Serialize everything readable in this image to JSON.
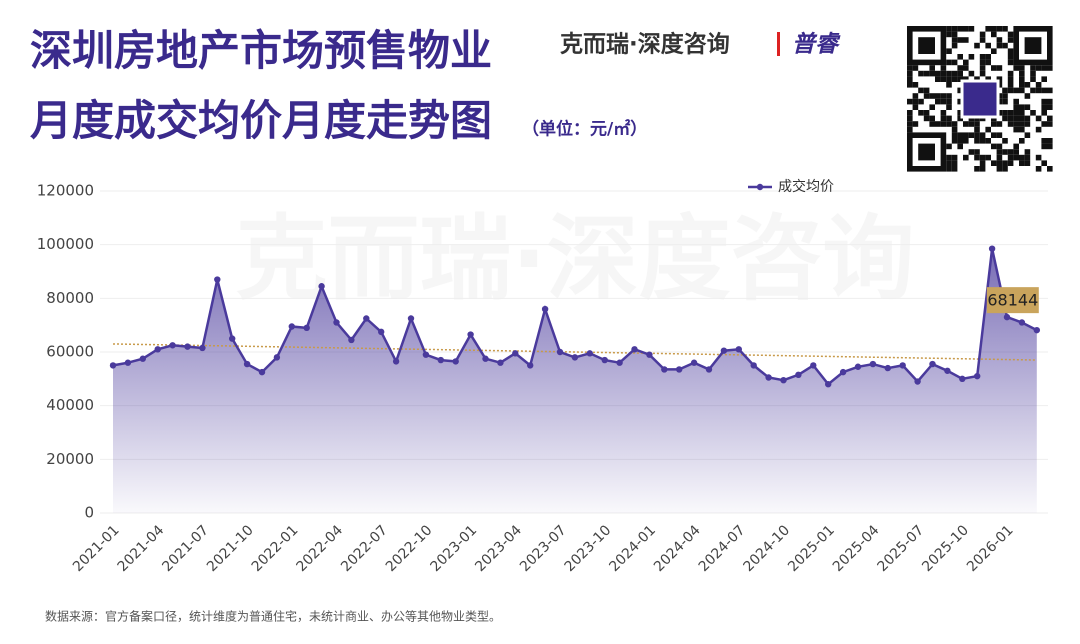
{
  "chart_data": {
    "type": "line",
    "title": "深圳房地产市场预售物业",
    "subtitle": "月度成交均价月度走势图",
    "unit": "（单位：元/㎡）",
    "brand": "克而瑞·深度咨询",
    "brand2": "普睿",
    "watermark": "克而瑞·深度咨询",
    "source": "数据来源：官方备案口径，统计维度为普通住宅，未统计商业、办公等其他物业类型。",
    "categories": [
      "2021-01",
      null,
      null,
      "2021-04",
      null,
      null,
      "2021-07",
      null,
      null,
      "2021-10",
      null,
      null,
      "2022-01",
      null,
      null,
      "2022-04",
      null,
      null,
      "2022-07",
      null,
      null,
      "2022-10",
      null,
      null,
      "2023-01",
      null,
      null,
      "2023-04",
      null,
      null,
      "2023-07",
      null,
      null,
      "2023-10",
      null,
      null,
      "2024-01",
      null,
      null,
      "2024-04",
      null,
      null,
      "2024-07",
      null,
      null,
      "2024-10",
      null,
      null,
      "2025-01",
      null,
      null,
      "2025-04",
      null,
      null,
      "2025-07",
      null,
      null,
      "2025-10",
      null,
      null,
      "2026-01",
      null,
      null
    ],
    "series": [
      {
        "name": "成交均价",
        "color": "#4a3a9c",
        "values": [
          55000,
          56000,
          57500,
          61000,
          62500,
          62000,
          61500,
          87000,
          65000,
          55500,
          52500,
          58000,
          69500,
          69000,
          84500,
          71000,
          64500,
          72500,
          67500,
          56500,
          72500,
          59000,
          57000,
          56500,
          66500,
          57500,
          56000,
          59500,
          55000,
          76000,
          60000,
          58000,
          59500,
          57000,
          56000,
          61000,
          59000,
          53500,
          53500,
          56000,
          53500,
          60500,
          61000,
          55000,
          50500,
          49500,
          51500,
          55000,
          48000,
          52500,
          54500,
          55500,
          54000,
          55000,
          49000,
          55500,
          53000,
          50000,
          51000,
          98500,
          73000,
          71000,
          68144
        ]
      }
    ],
    "trendline": {
      "color": "#c89a4a",
      "values": [
        63000,
        57000
      ]
    },
    "label_color": "#c9a45c",
    "ylim": [
      0,
      120000
    ],
    "yticks": [
      0,
      20000,
      40000,
      60000,
      80000,
      100000,
      120000
    ],
    "grid": true
  }
}
